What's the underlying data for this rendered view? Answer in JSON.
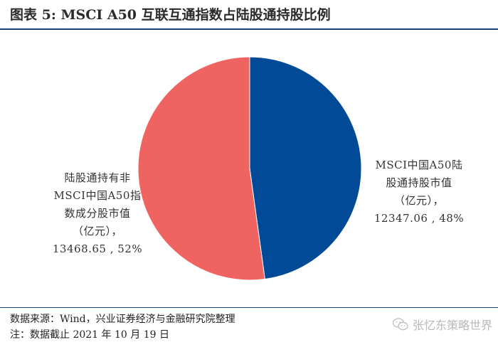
{
  "header": {
    "title": "图表 5: MSCI A50 互联互通指数占陆股通持股比例"
  },
  "chart_data": {
    "type": "pie",
    "slices": [
      {
        "label_lines": [
          "MSCI中国A50陆",
          "股通持股市值",
          "（亿元），",
          "12347.06 , 48%"
        ],
        "value": 12347.06,
        "percent": 48,
        "color": "#004a97"
      },
      {
        "label_lines": [
          "陆股通持有非",
          "MSCI中国A50指",
          "数成分股市值",
          "（亿元），",
          "13468.65 , 52%"
        ],
        "value": 13468.65,
        "percent": 52,
        "color": "#ef6461"
      }
    ]
  },
  "footer": {
    "source": "数据来源：Wind，兴业证券经济与金融研究院整理",
    "note": "注：数据截止 2021 年 10 月 19 日"
  },
  "watermark": {
    "text": "张忆东策略世界",
    "icon": "wechat-icon"
  }
}
